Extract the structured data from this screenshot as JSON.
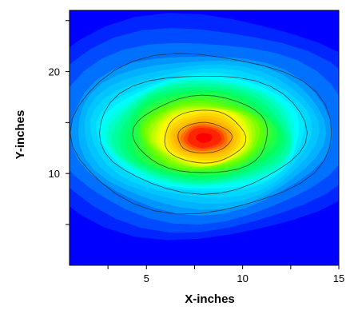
{
  "chart_data": {
    "type": "heatmap",
    "subtype": "filled-contour",
    "title": "",
    "xlabel": "X-inches",
    "ylabel": "Y-inches",
    "xlim": [
      1,
      15
    ],
    "ylim": [
      1,
      26
    ],
    "x_ticks": [
      {
        "value": 3,
        "label": ""
      },
      {
        "value": 5,
        "label": "5"
      },
      {
        "value": 7.5,
        "label": ""
      },
      {
        "value": 10,
        "label": "10"
      },
      {
        "value": 12.5,
        "label": ""
      },
      {
        "value": 15,
        "label": "15"
      }
    ],
    "y_ticks": [
      {
        "value": 5,
        "label": ""
      },
      {
        "value": 10,
        "label": "10"
      },
      {
        "value": 15,
        "label": ""
      },
      {
        "value": 20,
        "label": "20"
      },
      {
        "value": 25,
        "label": ""
      }
    ],
    "peak": {
      "x": 8,
      "y": 13.5
    },
    "colormap": [
      "#0000ff",
      "#00aaff",
      "#00ffff",
      "#00ff66",
      "#66ff00",
      "#ffff00",
      "#ffaa00",
      "#ff0000"
    ],
    "contour_levels": [
      {
        "level": 1,
        "cx": 7.8,
        "cy": 14.0,
        "rx": 6.8,
        "ry": 7.8,
        "contour_line": true
      },
      {
        "level": 2,
        "cx": 7.9,
        "cy": 14.0,
        "rx": 5.4,
        "ry": 5.8,
        "contour_line": true
      },
      {
        "level": 3,
        "cx": 7.9,
        "cy": 13.9,
        "rx": 4.6,
        "ry": 4.9,
        "contour_line": false
      },
      {
        "level": 4,
        "cx": 7.9,
        "cy": 13.8,
        "rx": 3.5,
        "ry": 3.8,
        "contour_line": true
      },
      {
        "level": 5,
        "cx": 7.9,
        "cy": 13.7,
        "rx": 2.8,
        "ry": 3.0,
        "contour_line": false
      },
      {
        "level": 6,
        "cx": 8.0,
        "cy": 13.6,
        "rx": 2.1,
        "ry": 2.6,
        "contour_line": true
      },
      {
        "level": 7,
        "cx": 8.0,
        "cy": 13.5,
        "rx": 1.4,
        "ry": 1.5,
        "contour_line": true
      },
      {
        "level": 8,
        "cx": 8.0,
        "cy": 13.5,
        "rx": 0.7,
        "ry": 0.8,
        "contour_line": false
      }
    ],
    "grid": false,
    "legend": "none"
  }
}
